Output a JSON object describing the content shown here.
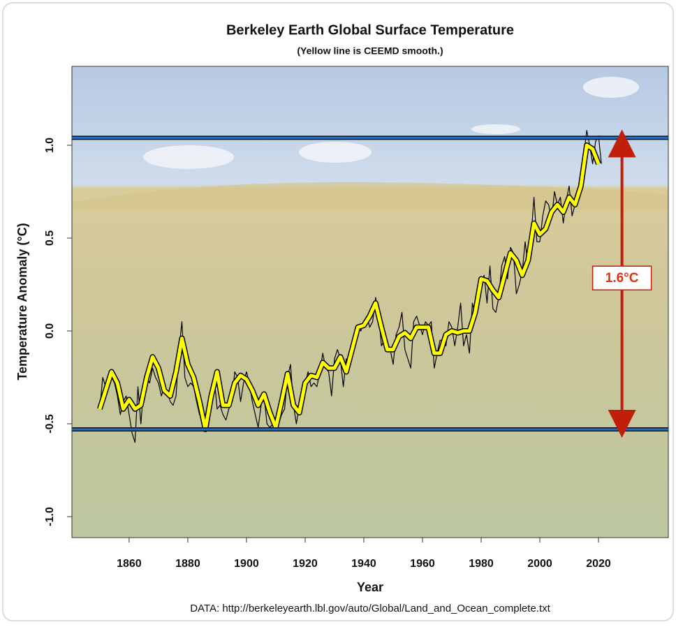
{
  "chart_data": {
    "type": "line",
    "title": "Berkeley Earth Global Surface Temperature",
    "subtitle": "(Yellow line is CEEMD smooth.)",
    "xlabel": "Year",
    "ylabel": "Temperature Anomaly (°C)",
    "source": "DATA: http://berkeleyearth.lbl.gov/auto/Global/Land_and_Ocean_complete.txt",
    "xlim": [
      1840.5,
      2043.8
    ],
    "ylim": [
      -1.113,
      1.425
    ],
    "xticks": [
      1860,
      1880,
      1900,
      1920,
      1940,
      1960,
      1980,
      2000,
      2020
    ],
    "yticks": [
      {
        "value": -1.0,
        "label": "-1.0"
      },
      -0.5,
      {
        "value": 0.0,
        "label": "0.0"
      },
      0.5,
      {
        "value": 1.0,
        "label": "1.0"
      }
    ],
    "series": [
      {
        "color": "#000000",
        "x": [
          1850,
          1851,
          1852,
          1853,
          1854,
          1855,
          1856,
          1857,
          1858,
          1859,
          1860,
          1861,
          1862,
          1863,
          1864,
          1865,
          1866,
          1867,
          1868,
          1869,
          1870,
          1871,
          1872,
          1873,
          1874,
          1875,
          1876,
          1877,
          1878,
          1879,
          1880,
          1881,
          1882,
          1883,
          1884,
          1885,
          1886,
          1887,
          1888,
          1889,
          1890,
          1891,
          1892,
          1893,
          1894,
          1895,
          1896,
          1897,
          1898,
          1899,
          1900,
          1901,
          1902,
          1903,
          1904,
          1905,
          1906,
          1907,
          1908,
          1909,
          1910,
          1911,
          1912,
          1913,
          1914,
          1915,
          1916,
          1917,
          1918,
          1919,
          1920,
          1921,
          1922,
          1923,
          1924,
          1925,
          1926,
          1927,
          1928,
          1929,
          1930,
          1931,
          1932,
          1933,
          1934,
          1935,
          1936,
          1937,
          1938,
          1939,
          1940,
          1941,
          1942,
          1943,
          1944,
          1945,
          1946,
          1947,
          1948,
          1949,
          1950,
          1951,
          1952,
          1953,
          1954,
          1955,
          1956,
          1957,
          1958,
          1959,
          1960,
          1961,
          1962,
          1963,
          1964,
          1965,
          1966,
          1967,
          1968,
          1969,
          1970,
          1971,
          1972,
          1973,
          1974,
          1975,
          1976,
          1977,
          1978,
          1979,
          1980,
          1981,
          1982,
          1983,
          1984,
          1985,
          1986,
          1987,
          1988,
          1989,
          1990,
          1991,
          1992,
          1993,
          1994,
          1995,
          1996,
          1997,
          1998,
          1999,
          2000,
          2001,
          2002,
          2003,
          2004,
          2005,
          2006,
          2007,
          2008,
          2009,
          2010,
          2011,
          2012,
          2013,
          2014,
          2015,
          2016,
          2017,
          2018,
          2019,
          2020,
          2021
        ],
        "values": [
          -0.42,
          -0.25,
          -0.3,
          -0.28,
          -0.25,
          -0.28,
          -0.35,
          -0.45,
          -0.38,
          -0.35,
          -0.45,
          -0.55,
          -0.6,
          -0.3,
          -0.5,
          -0.3,
          -0.25,
          -0.28,
          -0.2,
          -0.25,
          -0.28,
          -0.35,
          -0.3,
          -0.32,
          -0.38,
          -0.4,
          -0.35,
          -0.1,
          0.05,
          -0.25,
          -0.3,
          -0.28,
          -0.3,
          -0.38,
          -0.45,
          -0.48,
          -0.45,
          -0.52,
          -0.4,
          -0.25,
          -0.42,
          -0.4,
          -0.45,
          -0.48,
          -0.42,
          -0.38,
          -0.22,
          -0.25,
          -0.38,
          -0.28,
          -0.22,
          -0.28,
          -0.38,
          -0.45,
          -0.52,
          -0.4,
          -0.35,
          -0.5,
          -0.52,
          -0.5,
          -0.48,
          -0.5,
          -0.45,
          -0.42,
          -0.25,
          -0.18,
          -0.4,
          -0.5,
          -0.4,
          -0.32,
          -0.28,
          -0.22,
          -0.3,
          -0.28,
          -0.3,
          -0.22,
          -0.12,
          -0.2,
          -0.22,
          -0.35,
          -0.15,
          -0.1,
          -0.15,
          -0.3,
          -0.15,
          -0.2,
          -0.15,
          -0.02,
          0.02,
          0.0,
          0.05,
          0.08,
          0.02,
          0.05,
          0.18,
          0.1,
          -0.08,
          -0.05,
          -0.08,
          -0.1,
          -0.18,
          -0.02,
          0.02,
          0.1,
          -0.1,
          -0.15,
          -0.2,
          0.05,
          0.08,
          0.03,
          -0.02,
          0.05,
          0.03,
          0.05,
          -0.2,
          -0.12,
          -0.05,
          -0.05,
          -0.08,
          0.05,
          0.02,
          -0.08,
          0.02,
          0.15,
          -0.08,
          -0.02,
          -0.12,
          0.15,
          0.08,
          0.18,
          0.25,
          0.3,
          0.15,
          0.35,
          0.12,
          0.1,
          0.18,
          0.35,
          0.4,
          0.28,
          0.45,
          0.42,
          0.2,
          0.25,
          0.32,
          0.48,
          0.35,
          0.5,
          0.72,
          0.48,
          0.48,
          0.62,
          0.7,
          0.68,
          0.6,
          0.75,
          0.68,
          0.72,
          0.58,
          0.7,
          0.78,
          0.62,
          0.68,
          0.72,
          0.78,
          0.95,
          1.08,
          1.0,
          0.9,
          1.02,
          1.05,
          0.9
        ]
      },
      {
        "color": "#ffff00",
        "x": [
          1850,
          1852,
          1854,
          1856,
          1858,
          1860,
          1862,
          1864,
          1866,
          1868,
          1870,
          1872,
          1874,
          1876,
          1878,
          1880,
          1882,
          1884,
          1886,
          1888,
          1890,
          1892,
          1894,
          1896,
          1898,
          1900,
          1902,
          1904,
          1906,
          1908,
          1910,
          1912,
          1914,
          1916,
          1918,
          1920,
          1922,
          1924,
          1926,
          1928,
          1930,
          1932,
          1934,
          1936,
          1938,
          1940,
          1942,
          1944,
          1946,
          1948,
          1950,
          1952,
          1954,
          1956,
          1958,
          1960,
          1962,
          1964,
          1966,
          1968,
          1970,
          1972,
          1974,
          1976,
          1978,
          1980,
          1982,
          1984,
          1986,
          1988,
          1990,
          1992,
          1994,
          1996,
          1998,
          2000,
          2002,
          2004,
          2006,
          2008,
          2010,
          2012,
          2014,
          2016,
          2018,
          2020
        ],
        "values": [
          -0.42,
          -0.32,
          -0.22,
          -0.28,
          -0.42,
          -0.37,
          -0.42,
          -0.4,
          -0.25,
          -0.14,
          -0.2,
          -0.32,
          -0.35,
          -0.22,
          -0.04,
          -0.18,
          -0.25,
          -0.38,
          -0.53,
          -0.35,
          -0.22,
          -0.4,
          -0.4,
          -0.28,
          -0.24,
          -0.26,
          -0.32,
          -0.4,
          -0.34,
          -0.44,
          -0.52,
          -0.38,
          -0.23,
          -0.4,
          -0.44,
          -0.28,
          -0.24,
          -0.25,
          -0.17,
          -0.2,
          -0.2,
          -0.14,
          -0.22,
          -0.1,
          0.02,
          0.03,
          0.08,
          0.15,
          0.02,
          -0.1,
          -0.1,
          -0.03,
          -0.01,
          -0.04,
          0.02,
          0.02,
          0.02,
          -0.12,
          -0.12,
          -0.02,
          0.0,
          -0.01,
          0.0,
          0.0,
          0.1,
          0.28,
          0.27,
          0.22,
          0.18,
          0.3,
          0.42,
          0.38,
          0.3,
          0.38,
          0.58,
          0.52,
          0.55,
          0.64,
          0.68,
          0.64,
          0.72,
          0.68,
          0.78,
          1.0,
          0.98,
          0.9
        ]
      }
    ],
    "hlines": [
      {
        "value": 1.04,
        "color": "#1f6fc0"
      },
      {
        "value": -0.53,
        "color": "#1f6fc0"
      }
    ],
    "annotation": {
      "text": "1.6°C",
      "x": 2028,
      "color": "#e03010"
    }
  }
}
